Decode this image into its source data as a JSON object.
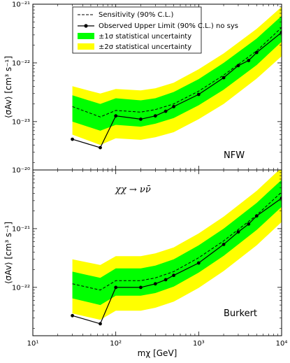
{
  "chart_data": [
    {
      "panel": "top",
      "type": "line",
      "label": "NFW",
      "xlabel": "",
      "ylabel": "⟨σAv⟩ [cm³ s⁻¹]",
      "xscale": "log",
      "yscale": "log",
      "xlim": [
        10,
        10000
      ],
      "ylim": [
        1.5e-24,
        1e-21
      ],
      "y_tick_labels": [
        "10⁻²³",
        "10⁻²²",
        "10⁻²¹"
      ],
      "y_tick_values": [
        1e-23,
        1e-22,
        1e-21
      ],
      "mass_points": [
        30,
        65,
        100,
        200,
        300,
        400,
        500,
        1000,
        2000,
        3000,
        4000,
        5000,
        10000
      ],
      "observed_limit": [
        5e-24,
        3.6e-24,
        1.25e-23,
        1.1e-23,
        1.25e-23,
        1.5e-23,
        1.8e-23,
        2.9e-23,
        5.6e-23,
        9e-23,
        1.1e-22,
        1.5e-22,
        3.3e-22
      ],
      "band_x": [
        30,
        65,
        100,
        200,
        300,
        500,
        1000,
        2000,
        5000,
        10000
      ],
      "sensitivity": [
        1.8e-23,
        1.2e-23,
        1.55e-23,
        1.45e-23,
        1.6e-23,
        2e-23,
        3.3e-23,
        6.2e-23,
        1.6e-22,
        4e-22
      ],
      "sigma2_low": [
        6e-24,
        4e-24,
        5.2e-24,
        4.9e-24,
        5.4e-24,
        6.6e-24,
        1.1e-23,
        2e-23,
        5.4e-23,
        1.3e-22
      ],
      "sigma1_low": [
        1e-23,
        7e-24,
        8.8e-24,
        8.2e-24,
        9.2e-24,
        1.15e-23,
        1.9e-23,
        3.5e-23,
        9.2e-23,
        2.3e-22
      ],
      "sigma1_high": [
        2.8e-23,
        2e-23,
        2.5e-23,
        2.3e-23,
        2.5e-23,
        3.2e-23,
        5.3e-23,
        1e-22,
        2.6e-22,
        6.3e-22
      ],
      "sigma2_high": [
        4e-23,
        3e-23,
        3.6e-23,
        3.4e-23,
        3.7e-23,
        4.6e-23,
        7.8e-23,
        1.45e-22,
        3.8e-22,
        9e-22
      ]
    },
    {
      "panel": "bottom",
      "type": "line",
      "label": "Burkert",
      "annotation": "χχ → νν̄",
      "xlabel": "mχ [GeV]",
      "ylabel": "⟨σAv⟩ [cm³ s⁻¹]",
      "xscale": "log",
      "yscale": "log",
      "xlim": [
        10,
        10000
      ],
      "ylim": [
        1.5e-23,
        1e-20
      ],
      "x_tick_labels": [
        "10¹",
        "10²",
        "10³",
        "10⁴"
      ],
      "x_tick_values": [
        10,
        100,
        1000,
        10000
      ],
      "y_tick_labels": [
        "10⁻²²",
        "10⁻²¹",
        "10⁻²⁰"
      ],
      "y_tick_values": [
        1e-22,
        1e-21,
        1e-20
      ],
      "mass_points": [
        30,
        65,
        100,
        200,
        300,
        400,
        500,
        1000,
        2000,
        3000,
        4000,
        5000,
        10000
      ],
      "observed_limit": [
        3.3e-23,
        2.4e-23,
        1e-22,
        1e-22,
        1.15e-22,
        1.35e-22,
        1.6e-22,
        2.6e-22,
        5.4e-22,
        8.8e-22,
        1.2e-21,
        1.65e-21,
        3.3e-21
      ],
      "band_x": [
        30,
        65,
        100,
        200,
        300,
        500,
        1000,
        2000,
        5000,
        10000
      ],
      "sensitivity": [
        1.15e-22,
        9e-23,
        1.3e-22,
        1.3e-22,
        1.45e-22,
        1.85e-22,
        3.2e-22,
        6.2e-22,
        1.7e-21,
        4.2e-21
      ],
      "sigma2_low": [
        3.6e-23,
        2.8e-23,
        4e-23,
        4e-23,
        4.5e-23,
        5.7e-23,
        9.8e-23,
        1.9e-22,
        5.2e-22,
        1.3e-21
      ],
      "sigma1_low": [
        6.5e-23,
        5e-23,
        7.2e-23,
        7.2e-23,
        8e-23,
        1.03e-22,
        1.78e-22,
        3.45e-22,
        9.5e-22,
        2.35e-21
      ],
      "sigma1_high": [
        1.85e-22,
        1.45e-22,
        2.1e-22,
        2.1e-22,
        2.35e-22,
        3e-22,
        5.2e-22,
        1e-21,
        2.75e-21,
        6.8e-21
      ],
      "sigma2_high": [
        3e-22,
        2.4e-22,
        3.4e-22,
        3.4e-22,
        3.8e-22,
        4.8e-22,
        8.3e-22,
        1.6e-21,
        4.4e-21,
        1.1e-20
      ]
    }
  ],
  "legend": {
    "sensitivity": "Sensitivity (90% C.L.)",
    "observed": "Observed Upper Limit (90% C.L.) no sys",
    "sigma1": "±1σ statistical uncertainty",
    "sigma2": "±2σ statistical uncertainty"
  },
  "colors": {
    "sigma1_band": "#00ff00",
    "sigma2_band": "#ffff00",
    "lines": "#000000"
  }
}
